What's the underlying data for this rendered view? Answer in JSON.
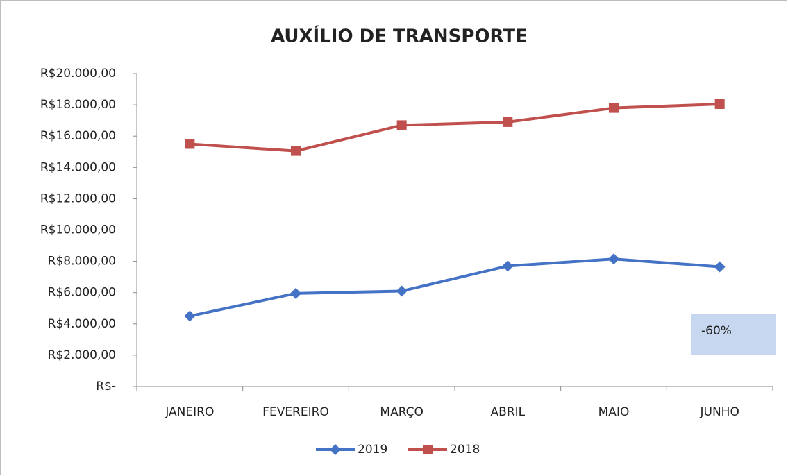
{
  "chart_data": {
    "type": "line",
    "title": "AUXÍLIO DE TRANSPORTE",
    "categories": [
      "JANEIRO",
      "FEVEREIRO",
      "MARÇO",
      "ABRIL",
      "MAIO",
      "JUNHO"
    ],
    "series": [
      {
        "name": "2019",
        "color": "#4472c4",
        "marker": "diamond",
        "values": [
          4500,
          5950,
          6100,
          7700,
          8150,
          7650
        ]
      },
      {
        "name": "2018",
        "color": "#c0504d",
        "marker": "square",
        "values": [
          15500,
          15050,
          16700,
          16900,
          17800,
          18050
        ]
      }
    ],
    "ylim": [
      0,
      20000
    ],
    "yticks": [
      {
        "value": 0,
        "label": "R$-"
      },
      {
        "value": 2000,
        "label": "R$2.000,00"
      },
      {
        "value": 4000,
        "label": "R$4.000,00"
      },
      {
        "value": 6000,
        "label": "R$6.000,00"
      },
      {
        "value": 8000,
        "label": "R$8.000,00"
      },
      {
        "value": 10000,
        "label": "R$10.000,00"
      },
      {
        "value": 12000,
        "label": "R$12.000,00"
      },
      {
        "value": 14000,
        "label": "R$14.000,00"
      },
      {
        "value": 16000,
        "label": "R$16.000,00"
      },
      {
        "value": 18000,
        "label": "R$18.000,00"
      },
      {
        "value": 20000,
        "label": "R$20.000,00"
      }
    ],
    "grid": false,
    "legend": "bottom",
    "annotation": "-60%"
  }
}
